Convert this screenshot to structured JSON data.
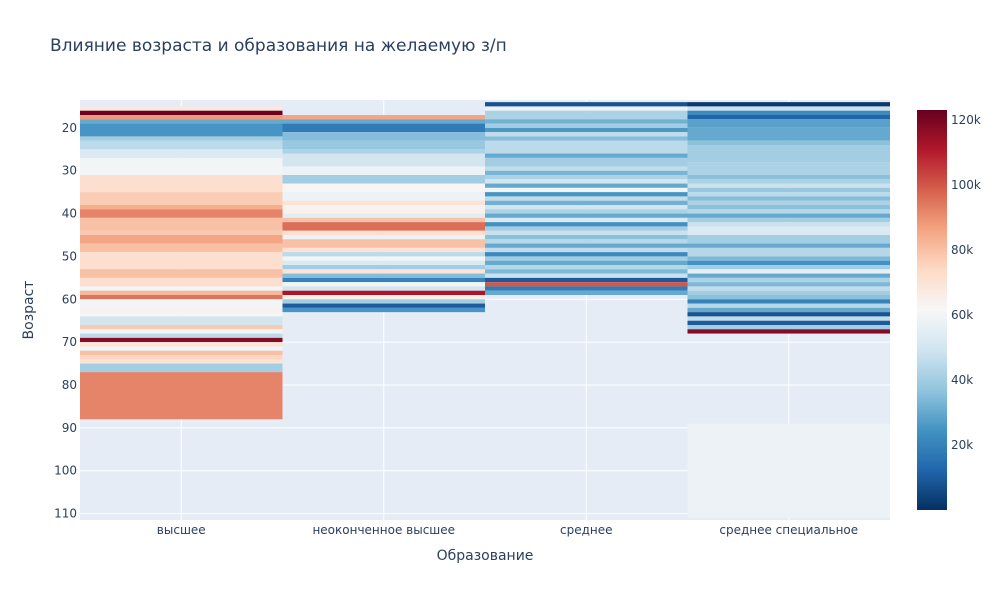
{
  "chart_data": {
    "type": "heatmap",
    "title": "Влияние возраста и образования на желаемую з/п",
    "xlabel": "Образование",
    "ylabel": "Возраст",
    "x_categories": [
      "высшее",
      "неоконченное высшее",
      "среднее",
      "среднее специальное"
    ],
    "y_range": [
      111.5,
      13.5
    ],
    "y_ticks": [
      20,
      30,
      40,
      50,
      60,
      70,
      80,
      90,
      100,
      110
    ],
    "colorscale": "RdBu",
    "colorbar": {
      "min": 0,
      "max": 123000,
      "ticks": [
        20000,
        40000,
        60000,
        80000,
        100000,
        120000
      ],
      "tick_labels": [
        "20k",
        "40k",
        "60k",
        "80k",
        "100k",
        "120k"
      ]
    },
    "colors": {
      "plot_bg": "#e5ecf6",
      "grid": "#ffffff",
      "text": "#2a3f5f"
    },
    "columns": [
      {
        "category": "высшее",
        "cells": [
          {
            "y0": 15,
            "y1": 16,
            "v": 68000
          },
          {
            "y0": 16,
            "y1": 17,
            "v": 122000
          },
          {
            "y0": 17,
            "y1": 18,
            "v": 88000
          },
          {
            "y0": 18,
            "y1": 19,
            "v": 30000
          },
          {
            "y0": 19,
            "y1": 22,
            "v": 25000
          },
          {
            "y0": 22,
            "y1": 23,
            "v": 40000
          },
          {
            "y0": 23,
            "y1": 25,
            "v": 45000
          },
          {
            "y0": 25,
            "y1": 27,
            "v": 52000
          },
          {
            "y0": 27,
            "y1": 31,
            "v": 60000
          },
          {
            "y0": 31,
            "y1": 35,
            "v": 72000
          },
          {
            "y0": 35,
            "y1": 38,
            "v": 77000
          },
          {
            "y0": 38,
            "y1": 39,
            "v": 84000
          },
          {
            "y0": 39,
            "y1": 41,
            "v": 92000
          },
          {
            "y0": 41,
            "y1": 44,
            "v": 80000
          },
          {
            "y0": 44,
            "y1": 45,
            "v": 78000
          },
          {
            "y0": 45,
            "y1": 47,
            "v": 86000
          },
          {
            "y0": 47,
            "y1": 49,
            "v": 80000
          },
          {
            "y0": 49,
            "y1": 53,
            "v": 72000
          },
          {
            "y0": 53,
            "y1": 55,
            "v": 80000
          },
          {
            "y0": 55,
            "y1": 57,
            "v": 72000
          },
          {
            "y0": 57,
            "y1": 58,
            "v": 60000
          },
          {
            "y0": 58,
            "y1": 59,
            "v": 82000
          },
          {
            "y0": 59,
            "y1": 60,
            "v": 95000
          },
          {
            "y0": 60,
            "y1": 62,
            "v": 60000
          },
          {
            "y0": 62,
            "y1": 63,
            "v": 64000
          },
          {
            "y0": 63,
            "y1": 64,
            "v": 62000
          },
          {
            "y0": 64,
            "y1": 66,
            "v": 50000
          },
          {
            "y0": 66,
            "y1": 67,
            "v": 78000
          },
          {
            "y0": 67,
            "y1": 68,
            "v": 60000
          },
          {
            "y0": 68,
            "y1": 69,
            "v": 45000
          },
          {
            "y0": 69,
            "y1": 70,
            "v": 118000
          },
          {
            "y0": 70,
            "y1": 71,
            "v": 70000
          },
          {
            "y0": 71,
            "y1": 72,
            "v": 60000
          },
          {
            "y0": 72,
            "y1": 73,
            "v": 80000
          },
          {
            "y0": 73,
            "y1": 74,
            "v": 75000
          },
          {
            "y0": 74,
            "y1": 75,
            "v": 70000
          },
          {
            "y0": 75,
            "y1": 77,
            "v": 40000
          },
          {
            "y0": 77,
            "y1": 88,
            "v": 92000
          }
        ]
      },
      {
        "category": "неоконченное высшее",
        "cells": [
          {
            "y0": 17,
            "y1": 18,
            "v": 86000
          },
          {
            "y0": 18,
            "y1": 19,
            "v": 30000
          },
          {
            "y0": 19,
            "y1": 21,
            "v": 18000
          },
          {
            "y0": 21,
            "y1": 23,
            "v": 35000
          },
          {
            "y0": 23,
            "y1": 25,
            "v": 38000
          },
          {
            "y0": 25,
            "y1": 26,
            "v": 42000
          },
          {
            "y0": 26,
            "y1": 29,
            "v": 50000
          },
          {
            "y0": 29,
            "y1": 31,
            "v": 58000
          },
          {
            "y0": 31,
            "y1": 33,
            "v": 40000
          },
          {
            "y0": 33,
            "y1": 35,
            "v": 62000
          },
          {
            "y0": 35,
            "y1": 37,
            "v": 58000
          },
          {
            "y0": 37,
            "y1": 38,
            "v": 70000
          },
          {
            "y0": 38,
            "y1": 40,
            "v": 64000
          },
          {
            "y0": 40,
            "y1": 41,
            "v": 55000
          },
          {
            "y0": 41,
            "y1": 42,
            "v": 80000
          },
          {
            "y0": 42,
            "y1": 44,
            "v": 96000
          },
          {
            "y0": 44,
            "y1": 45,
            "v": 72000
          },
          {
            "y0": 45,
            "y1": 46,
            "v": 58000
          },
          {
            "y0": 46,
            "y1": 48,
            "v": 80000
          },
          {
            "y0": 48,
            "y1": 49,
            "v": 70000
          },
          {
            "y0": 49,
            "y1": 50,
            "v": 45000
          },
          {
            "y0": 50,
            "y1": 51,
            "v": 60000
          },
          {
            "y0": 51,
            "y1": 52,
            "v": 52000
          },
          {
            "y0": 52,
            "y1": 53,
            "v": 40000
          },
          {
            "y0": 53,
            "y1": 54,
            "v": 70000
          },
          {
            "y0": 54,
            "y1": 55,
            "v": 35000
          },
          {
            "y0": 55,
            "y1": 56,
            "v": 20000
          },
          {
            "y0": 56,
            "y1": 57,
            "v": 60000
          },
          {
            "y0": 57,
            "y1": 58,
            "v": 50000
          },
          {
            "y0": 58,
            "y1": 59,
            "v": 112000
          },
          {
            "y0": 59,
            "y1": 60,
            "v": 65000
          },
          {
            "y0": 60,
            "y1": 61,
            "v": 40000
          },
          {
            "y0": 61,
            "y1": 62,
            "v": 10000
          },
          {
            "y0": 62,
            "y1": 63,
            "v": 25000
          }
        ]
      },
      {
        "category": "среднее",
        "cells": [
          {
            "y0": 14,
            "y1": 15,
            "v": 8000
          },
          {
            "y0": 15,
            "y1": 16,
            "v": 58000
          },
          {
            "y0": 16,
            "y1": 18,
            "v": 42000
          },
          {
            "y0": 18,
            "y1": 19,
            "v": 32000
          },
          {
            "y0": 19,
            "y1": 20,
            "v": 40000
          },
          {
            "y0": 20,
            "y1": 21,
            "v": 26000
          },
          {
            "y0": 21,
            "y1": 22,
            "v": 46000
          },
          {
            "y0": 22,
            "y1": 23,
            "v": 35000
          },
          {
            "y0": 23,
            "y1": 26,
            "v": 45000
          },
          {
            "y0": 26,
            "y1": 27,
            "v": 30000
          },
          {
            "y0": 27,
            "y1": 29,
            "v": 40000
          },
          {
            "y0": 29,
            "y1": 30,
            "v": 46000
          },
          {
            "y0": 30,
            "y1": 31,
            "v": 33000
          },
          {
            "y0": 31,
            "y1": 32,
            "v": 42000
          },
          {
            "y0": 32,
            "y1": 33,
            "v": 50000
          },
          {
            "y0": 33,
            "y1": 34,
            "v": 30000
          },
          {
            "y0": 34,
            "y1": 35,
            "v": 60000
          },
          {
            "y0": 35,
            "y1": 36,
            "v": 25000
          },
          {
            "y0": 36,
            "y1": 37,
            "v": 46000
          },
          {
            "y0": 37,
            "y1": 38,
            "v": 32000
          },
          {
            "y0": 38,
            "y1": 39,
            "v": 50000
          },
          {
            "y0": 39,
            "y1": 40,
            "v": 42000
          },
          {
            "y0": 40,
            "y1": 41,
            "v": 30000
          },
          {
            "y0": 41,
            "y1": 42,
            "v": 52000
          },
          {
            "y0": 42,
            "y1": 43,
            "v": 24000
          },
          {
            "y0": 43,
            "y1": 44,
            "v": 40000
          },
          {
            "y0": 44,
            "y1": 45,
            "v": 48000
          },
          {
            "y0": 45,
            "y1": 46,
            "v": 36000
          },
          {
            "y0": 46,
            "y1": 47,
            "v": 44000
          },
          {
            "y0": 47,
            "y1": 48,
            "v": 30000
          },
          {
            "y0": 48,
            "y1": 49,
            "v": 46000
          },
          {
            "y0": 49,
            "y1": 50,
            "v": 22000
          },
          {
            "y0": 50,
            "y1": 51,
            "v": 40000
          },
          {
            "y0": 51,
            "y1": 52,
            "v": 30000
          },
          {
            "y0": 52,
            "y1": 53,
            "v": 44000
          },
          {
            "y0": 53,
            "y1": 54,
            "v": 34000
          },
          {
            "y0": 54,
            "y1": 55,
            "v": 48000
          },
          {
            "y0": 55,
            "y1": 56,
            "v": 10000
          },
          {
            "y0": 56,
            "y1": 57,
            "v": 100000
          },
          {
            "y0": 57,
            "y1": 58,
            "v": 18000
          },
          {
            "y0": 58,
            "y1": 59,
            "v": 30000
          }
        ]
      },
      {
        "category": "среднее специальное",
        "cells": [
          {
            "y0": 14,
            "y1": 15,
            "v": 2000
          },
          {
            "y0": 15,
            "y1": 16,
            "v": 48000
          },
          {
            "y0": 16,
            "y1": 17,
            "v": 22000
          },
          {
            "y0": 17,
            "y1": 18,
            "v": 12000
          },
          {
            "y0": 18,
            "y1": 20,
            "v": 28000
          },
          {
            "y0": 20,
            "y1": 23,
            "v": 30000
          },
          {
            "y0": 23,
            "y1": 24,
            "v": 36000
          },
          {
            "y0": 24,
            "y1": 28,
            "v": 40000
          },
          {
            "y0": 28,
            "y1": 31,
            "v": 42000
          },
          {
            "y0": 31,
            "y1": 32,
            "v": 36000
          },
          {
            "y0": 32,
            "y1": 33,
            "v": 42000
          },
          {
            "y0": 33,
            "y1": 34,
            "v": 48000
          },
          {
            "y0": 34,
            "y1": 35,
            "v": 38000
          },
          {
            "y0": 35,
            "y1": 36,
            "v": 45000
          },
          {
            "y0": 36,
            "y1": 37,
            "v": 35000
          },
          {
            "y0": 37,
            "y1": 38,
            "v": 42000
          },
          {
            "y0": 38,
            "y1": 39,
            "v": 36000
          },
          {
            "y0": 39,
            "y1": 40,
            "v": 44000
          },
          {
            "y0": 40,
            "y1": 41,
            "v": 30000
          },
          {
            "y0": 41,
            "y1": 42,
            "v": 40000
          },
          {
            "y0": 42,
            "y1": 43,
            "v": 48000
          },
          {
            "y0": 43,
            "y1": 45,
            "v": 52000
          },
          {
            "y0": 45,
            "y1": 47,
            "v": 40000
          },
          {
            "y0": 47,
            "y1": 48,
            "v": 30000
          },
          {
            "y0": 48,
            "y1": 50,
            "v": 44000
          },
          {
            "y0": 50,
            "y1": 51,
            "v": 34000
          },
          {
            "y0": 51,
            "y1": 52,
            "v": 24000
          },
          {
            "y0": 52,
            "y1": 53,
            "v": 40000
          },
          {
            "y0": 53,
            "y1": 54,
            "v": 56000
          },
          {
            "y0": 54,
            "y1": 55,
            "v": 30000
          },
          {
            "y0": 55,
            "y1": 56,
            "v": 42000
          },
          {
            "y0": 56,
            "y1": 57,
            "v": 34000
          },
          {
            "y0": 57,
            "y1": 58,
            "v": 46000
          },
          {
            "y0": 58,
            "y1": 59,
            "v": 40000
          },
          {
            "y0": 59,
            "y1": 60,
            "v": 36000
          },
          {
            "y0": 60,
            "y1": 61,
            "v": 20000
          },
          {
            "y0": 61,
            "y1": 62,
            "v": 44000
          },
          {
            "y0": 62,
            "y1": 63,
            "v": 30000
          },
          {
            "y0": 63,
            "y1": 64,
            "v": 8000
          },
          {
            "y0": 64,
            "y1": 65,
            "v": 46000
          },
          {
            "y0": 65,
            "y1": 66,
            "v": 10000
          },
          {
            "y0": 66,
            "y1": 67,
            "v": 40000
          },
          {
            "y0": 67,
            "y1": 68,
            "v": 118000
          },
          {
            "y0": 89,
            "y1": 111,
            "v": 58000
          }
        ]
      }
    ]
  }
}
